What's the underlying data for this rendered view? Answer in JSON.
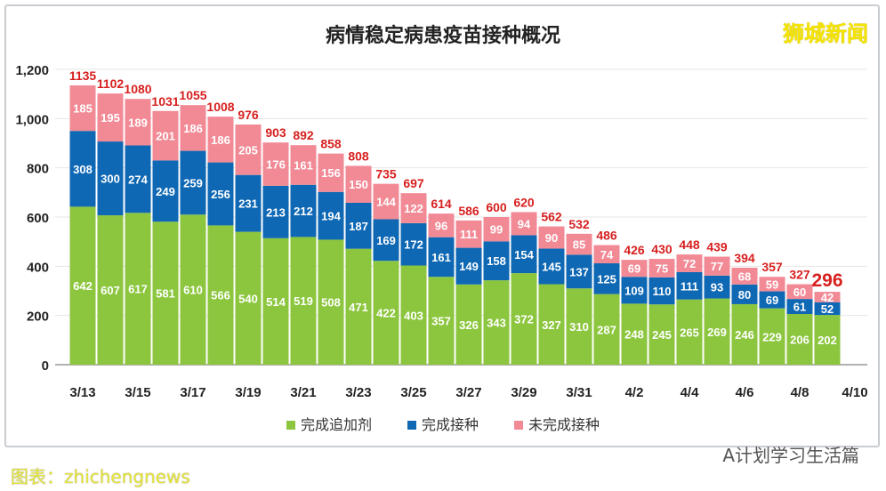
{
  "chart_data": {
    "type": "bar",
    "stacked": true,
    "title": "病情稳定病患疫苗接种概况",
    "categories": [
      "3/13",
      "3/14",
      "3/15",
      "3/16",
      "3/17",
      "3/18",
      "3/19",
      "3/20",
      "3/21",
      "3/22",
      "3/23",
      "3/24",
      "3/25",
      "3/26",
      "3/27",
      "3/28",
      "3/29",
      "3/30",
      "3/31",
      "4/1",
      "4/2",
      "4/3",
      "4/4",
      "4/5",
      "4/6",
      "4/7",
      "4/8",
      "4/9"
    ],
    "x_tick_labels": [
      "3/13",
      "3/15",
      "3/17",
      "3/19",
      "3/21",
      "3/23",
      "3/25",
      "3/27",
      "3/29",
      "3/31",
      "4/2",
      "4/4",
      "4/6",
      "4/8",
      "4/10"
    ],
    "y_ticks": [
      "0",
      "200",
      "400",
      "600",
      "800",
      "1,000",
      "1,200"
    ],
    "ylim": [
      0,
      1200
    ],
    "grid": true,
    "legend_position": "bottom",
    "series": [
      {
        "name": "完成追加剂",
        "color": "#8cc63e",
        "values": [
          642,
          607,
          617,
          581,
          610,
          566,
          540,
          514,
          519,
          508,
          471,
          422,
          403,
          357,
          326,
          343,
          372,
          327,
          310,
          287,
          248,
          245,
          265,
          269,
          246,
          229,
          206,
          202
        ]
      },
      {
        "name": "完成接种",
        "color": "#0f68b4",
        "values": [
          308,
          300,
          274,
          249,
          259,
          256,
          231,
          213,
          212,
          194,
          187,
          169,
          172,
          161,
          149,
          158,
          154,
          145,
          137,
          125,
          109,
          110,
          111,
          93,
          80,
          69,
          61,
          52
        ]
      },
      {
        "name": "未完成接种",
        "color": "#f28a96",
        "values": [
          185,
          195,
          189,
          201,
          186,
          186,
          205,
          176,
          161,
          156,
          150,
          144,
          122,
          96,
          111,
          99,
          94,
          90,
          85,
          74,
          69,
          75,
          72,
          77,
          68,
          59,
          60,
          42
        ]
      }
    ],
    "totals": [
      1135,
      1102,
      1080,
      1031,
      1055,
      1008,
      976,
      903,
      892,
      858,
      808,
      735,
      697,
      614,
      586,
      600,
      620,
      562,
      532,
      486,
      426,
      430,
      448,
      439,
      394,
      357,
      327,
      296
    ],
    "total_color": "#d7201f"
  },
  "logo": "狮城新闻",
  "watermark": "A计划学习生活篇",
  "footer": "图表：zhichengnews"
}
